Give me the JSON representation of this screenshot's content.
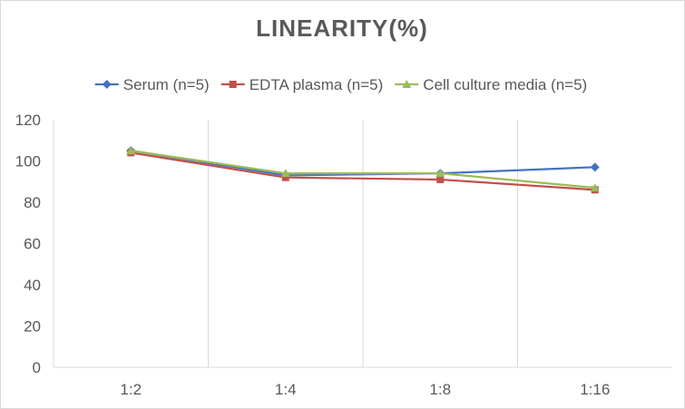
{
  "chart_data": {
    "type": "line",
    "title": "LINEARITY(%)",
    "xlabel": "",
    "ylabel": "",
    "categories": [
      "1:2",
      "1:4",
      "1:8",
      "1:16"
    ],
    "ylim": [
      0,
      120
    ],
    "yticks": [
      0,
      20,
      40,
      60,
      80,
      100,
      120
    ],
    "grid": "vertical",
    "legend_position": "top",
    "series": [
      {
        "name": "Serum (n=5)",
        "values": [
          105,
          93,
          94,
          97
        ],
        "color": "#4472C4",
        "marker": "diamond"
      },
      {
        "name": "EDTA plasma (n=5)",
        "values": [
          104,
          92,
          91,
          86
        ],
        "color": "#C0504D",
        "marker": "square"
      },
      {
        "name": "Cell culture media (n=5)",
        "values": [
          105,
          94,
          94,
          87
        ],
        "color": "#9BBB59",
        "marker": "triangle"
      }
    ]
  }
}
